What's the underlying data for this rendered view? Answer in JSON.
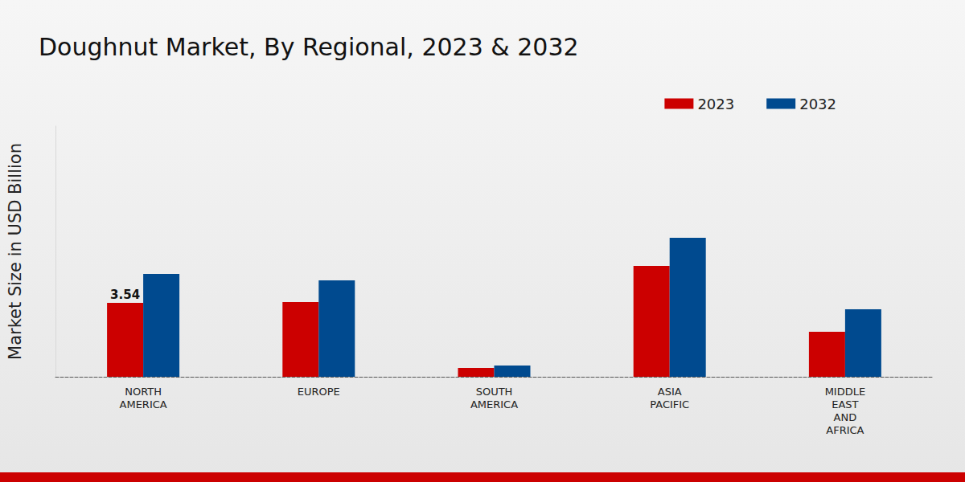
{
  "chart_data": {
    "type": "bar",
    "title": "Doughnut Market, By Regional, 2023 & 2032",
    "y_label": "Market Size in USD Billion",
    "categories": [
      "NORTH\nAMERICA",
      "EUROPE",
      "SOUTH\nAMERICA",
      "ASIA\nPACIFIC",
      "MIDDLE\nEAST\nAND\nAFRICA"
    ],
    "series": [
      {
        "name": "2023",
        "color": "#cc0000",
        "values": [
          3.54,
          3.58,
          0.42,
          5.31,
          2.15
        ],
        "value_labels": [
          "3.54",
          null,
          null,
          null,
          null
        ]
      },
      {
        "name": "2032",
        "color": "#004a8f",
        "values": [
          4.92,
          4.62,
          0.54,
          6.65,
          3.23
        ]
      }
    ],
    "ylim": [
      0,
      12
    ],
    "grid": false,
    "legend": "top-right",
    "tick_labels": "x"
  }
}
